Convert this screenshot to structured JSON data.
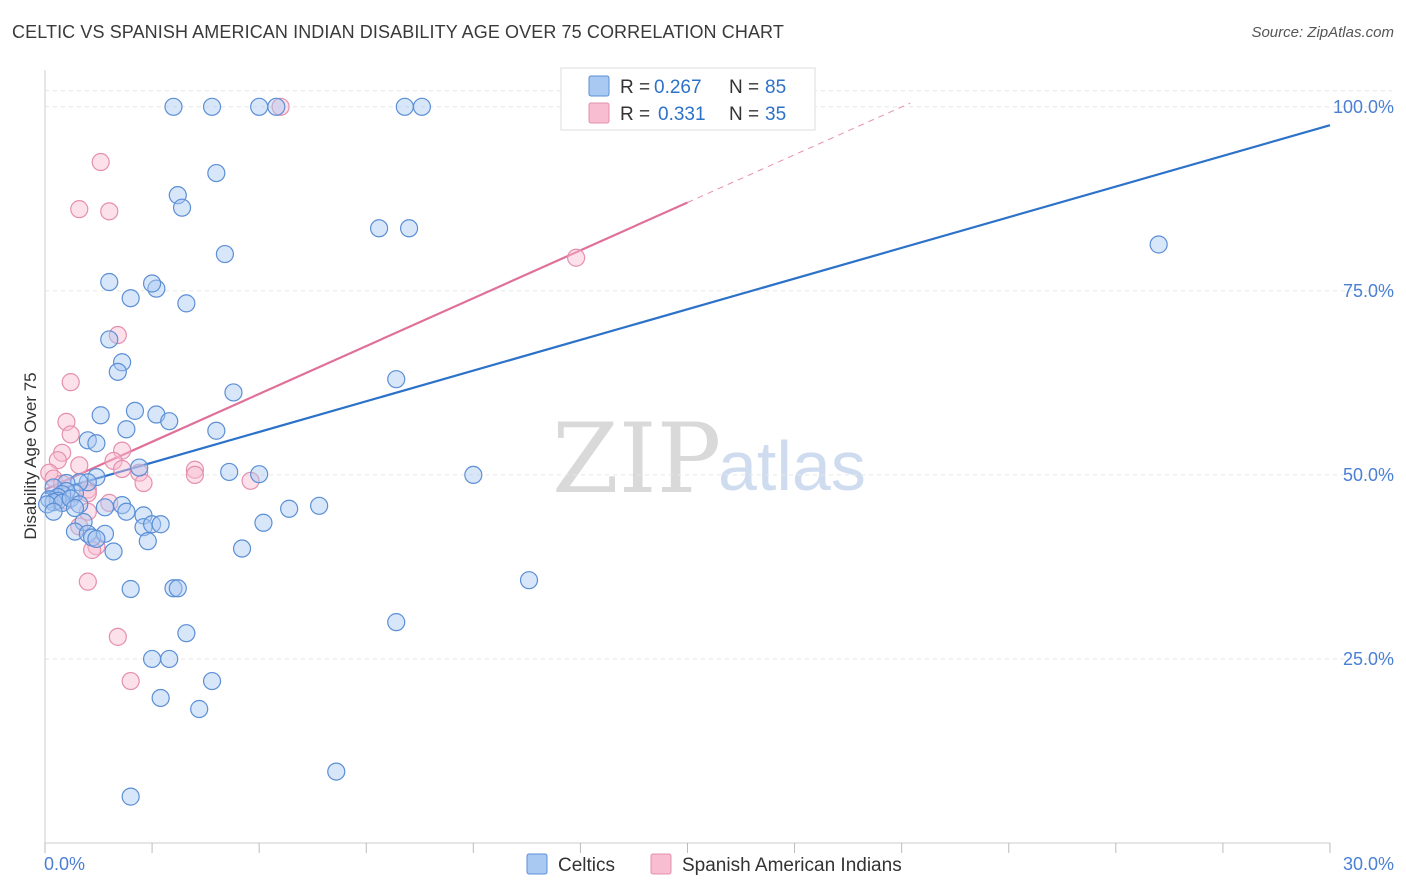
{
  "title": "CELTIC VS SPANISH AMERICAN INDIAN DISABILITY AGE OVER 75 CORRELATION CHART",
  "source": "Source: ZipAtlas.com",
  "watermark": {
    "zip": "ZIP",
    "atlas": "atlas"
  },
  "colors": {
    "celtic_fill": "#a9c8f2",
    "celtic_stroke": "#5b8fd6",
    "celtic_line": "#2d72c9",
    "sai_fill": "#f8bdd0",
    "sai_stroke": "#e58fae",
    "sai_line": "#e0709a",
    "axis_label": "#4a7fd4"
  },
  "stats_legend": {
    "rows": [
      {
        "r_label": "R =",
        "r_value": "0.267",
        "n_label": "N =",
        "n_value": "85"
      },
      {
        "r_label": "R =",
        "r_value": "0.331",
        "n_label": "N =",
        "n_value": "35"
      }
    ]
  },
  "bottom_legend": [
    "Celtics",
    "Spanish American Indians"
  ],
  "chart_data": {
    "type": "scatter",
    "title": "CELTIC VS SPANISH AMERICAN INDIAN DISABILITY AGE OVER 75 CORRELATION CHART",
    "xlabel": "",
    "ylabel": "Disability Age Over 75",
    "xlim": [
      0,
      30
    ],
    "ylim": [
      0,
      105
    ],
    "x_tick_labels": [
      "0.0%",
      "30.0%"
    ],
    "y_ticks": [
      25,
      50,
      75,
      100
    ],
    "y_tick_labels": [
      "25.0%",
      "50.0%",
      "75.0%",
      "100.0%"
    ],
    "grid": true,
    "series": [
      {
        "name": "Celtics",
        "R": 0.267,
        "N": 85,
        "trend": {
          "x0": 0,
          "y0": 47.5,
          "x1": 30,
          "y1": 97.5
        },
        "points": [
          [
            3.0,
            100
          ],
          [
            3.9,
            100
          ],
          [
            5.0,
            100
          ],
          [
            5.4,
            100
          ],
          [
            8.4,
            100
          ],
          [
            8.8,
            100
          ],
          [
            3.1,
            88.0
          ],
          [
            4.0,
            91.0
          ],
          [
            3.2,
            86.3
          ],
          [
            7.8,
            83.5
          ],
          [
            8.5,
            83.5
          ],
          [
            26.0,
            81.3
          ],
          [
            4.2,
            80.0
          ],
          [
            1.5,
            76.2
          ],
          [
            2.6,
            75.3
          ],
          [
            2.5,
            76.0
          ],
          [
            2.0,
            74.0
          ],
          [
            3.3,
            73.3
          ],
          [
            1.5,
            68.4
          ],
          [
            1.8,
            65.3
          ],
          [
            1.7,
            64.0
          ],
          [
            8.2,
            63.0
          ],
          [
            4.4,
            61.2
          ],
          [
            2.1,
            58.7
          ],
          [
            2.6,
            58.2
          ],
          [
            1.3,
            58.1
          ],
          [
            2.9,
            57.3
          ],
          [
            1.9,
            56.2
          ],
          [
            4.0,
            56.0
          ],
          [
            1.0,
            54.7
          ],
          [
            1.2,
            54.3
          ],
          [
            2.2,
            51.0
          ],
          [
            4.3,
            50.4
          ],
          [
            5.0,
            50.1
          ],
          [
            10.0,
            50.0
          ],
          [
            1.2,
            49.7
          ],
          [
            1.0,
            49.0
          ],
          [
            0.8,
            49.0
          ],
          [
            0.5,
            48.9
          ],
          [
            0.2,
            48.3
          ],
          [
            0.7,
            47.5
          ],
          [
            0.5,
            47.8
          ],
          [
            0.4,
            47.4
          ],
          [
            0.3,
            47.0
          ],
          [
            0.1,
            46.7
          ],
          [
            0.3,
            46.5
          ],
          [
            0.2,
            46.3
          ],
          [
            0.05,
            46.0
          ],
          [
            0.4,
            46.2
          ],
          [
            0.6,
            46.8
          ],
          [
            0.8,
            46.0
          ],
          [
            1.4,
            45.6
          ],
          [
            1.8,
            45.9
          ],
          [
            0.7,
            45.5
          ],
          [
            0.2,
            45.0
          ],
          [
            1.9,
            45.0
          ],
          [
            2.3,
            44.5
          ],
          [
            5.7,
            45.4
          ],
          [
            6.4,
            45.8
          ],
          [
            0.9,
            43.6
          ],
          [
            2.3,
            42.9
          ],
          [
            2.5,
            43.3
          ],
          [
            2.7,
            43.3
          ],
          [
            5.1,
            43.5
          ],
          [
            0.7,
            42.3
          ],
          [
            1.0,
            42.0
          ],
          [
            1.1,
            41.5
          ],
          [
            1.4,
            42.0
          ],
          [
            1.2,
            41.3
          ],
          [
            2.4,
            41.0
          ],
          [
            1.6,
            39.6
          ],
          [
            4.6,
            40.0
          ],
          [
            11.3,
            35.7
          ],
          [
            2.0,
            34.5
          ],
          [
            3.0,
            34.6
          ],
          [
            3.1,
            34.6
          ],
          [
            8.2,
            30.0
          ],
          [
            3.3,
            28.5
          ],
          [
            2.5,
            25.0
          ],
          [
            2.9,
            25.0
          ],
          [
            3.9,
            22.0
          ],
          [
            2.7,
            19.7
          ],
          [
            3.6,
            18.2
          ],
          [
            6.8,
            9.7
          ],
          [
            2.0,
            6.3
          ]
        ]
      },
      {
        "name": "Spanish American Indians",
        "R": 0.331,
        "N": 35,
        "trend": {
          "x0": 0,
          "y0": 48.0,
          "x1": 15.0,
          "y1": 87.0,
          "dash_x1": 20.2,
          "dash_y1": 100.5
        },
        "points": [
          [
            5.5,
            100
          ],
          [
            1.3,
            92.5
          ],
          [
            0.8,
            86.1
          ],
          [
            1.5,
            85.8
          ],
          [
            12.4,
            79.5
          ],
          [
            1.7,
            69.0
          ],
          [
            0.6,
            62.6
          ],
          [
            0.5,
            57.2
          ],
          [
            0.6,
            55.5
          ],
          [
            0.4,
            53.0
          ],
          [
            1.8,
            53.3
          ],
          [
            0.3,
            52.0
          ],
          [
            0.8,
            51.3
          ],
          [
            1.6,
            51.9
          ],
          [
            1.8,
            50.8
          ],
          [
            2.2,
            50.3
          ],
          [
            3.5,
            50.7
          ],
          [
            3.5,
            50.0
          ],
          [
            0.1,
            50.3
          ],
          [
            0.2,
            49.5
          ],
          [
            0.4,
            48.8
          ],
          [
            2.3,
            48.9
          ],
          [
            4.8,
            49.2
          ],
          [
            1.0,
            48.0
          ],
          [
            1.0,
            47.5
          ],
          [
            0.3,
            47.0
          ],
          [
            0.5,
            46.5
          ],
          [
            1.5,
            46.2
          ],
          [
            1.0,
            45.0
          ],
          [
            0.8,
            43.0
          ],
          [
            1.2,
            40.3
          ],
          [
            1.1,
            39.8
          ],
          [
            1.0,
            35.5
          ],
          [
            1.7,
            28.0
          ],
          [
            2.0,
            22.0
          ]
        ]
      }
    ]
  }
}
